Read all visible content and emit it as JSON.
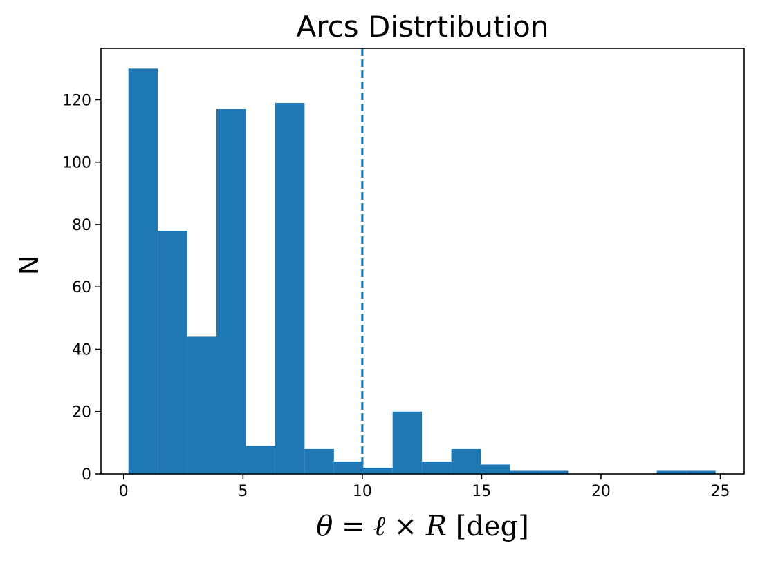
{
  "chart_data": {
    "type": "bar",
    "title": "Arcs Distrtibution",
    "xlabel": {
      "theta": "θ",
      "eq": " = ",
      "ell": "ℓ",
      "times": " × ",
      "r": "R",
      "unit": " [deg]"
    },
    "ylabel": "N",
    "xlim": [
      -0.95,
      26.0
    ],
    "ylim": [
      0,
      136.5
    ],
    "xticks": [
      0,
      5,
      10,
      15,
      20,
      25
    ],
    "yticks": [
      0,
      20,
      40,
      60,
      80,
      100,
      120
    ],
    "bin_edges": [
      0.2,
      1.43,
      2.66,
      3.89,
      5.12,
      6.35,
      7.58,
      8.81,
      10.04,
      11.27,
      12.5,
      13.73,
      14.96,
      16.19,
      17.42,
      18.65,
      19.88,
      21.11,
      22.34,
      23.57,
      24.8
    ],
    "counts": [
      130,
      78,
      44,
      117,
      9,
      119,
      8,
      4,
      2,
      20,
      4,
      8,
      3,
      1,
      1,
      0,
      0,
      0,
      1,
      1
    ],
    "bar_color": "#1f77b4",
    "vline": {
      "x": 10.0,
      "style": "dashed",
      "color": "#1f77b4"
    },
    "grid": false,
    "legend": "none"
  }
}
